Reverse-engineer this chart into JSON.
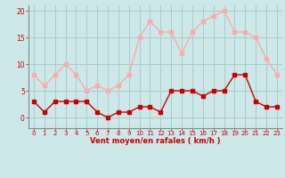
{
  "x": [
    0,
    1,
    2,
    3,
    4,
    5,
    6,
    7,
    8,
    9,
    10,
    11,
    12,
    13,
    14,
    15,
    16,
    17,
    18,
    19,
    20,
    21,
    22,
    23
  ],
  "wind_avg": [
    3,
    1,
    3,
    3,
    3,
    3,
    1,
    0,
    1,
    1,
    2,
    2,
    1,
    5,
    5,
    5,
    4,
    5,
    5,
    8,
    8,
    3,
    2,
    2
  ],
  "wind_gust": [
    8,
    6,
    8,
    10,
    8,
    5,
    6,
    5,
    6,
    8,
    15,
    18,
    16,
    16,
    12,
    16,
    18,
    19,
    20,
    16,
    16,
    15,
    11,
    8
  ],
  "xlabel": "Vent moyen/en rafales ( km/h )",
  "ylim": [
    -2,
    21
  ],
  "xlim": [
    -0.5,
    23.5
  ],
  "yticks": [
    0,
    5,
    10,
    15,
    20
  ],
  "xticks": [
    0,
    1,
    2,
    3,
    4,
    5,
    6,
    7,
    8,
    9,
    10,
    11,
    12,
    13,
    14,
    15,
    16,
    17,
    18,
    19,
    20,
    21,
    22,
    23
  ],
  "bg_color": "#cce8e8",
  "grid_color": "#aacccc",
  "avg_color": "#cc0000",
  "gust_color": "#ffaaaa",
  "marker_size": 2.5,
  "line_width": 1.0
}
